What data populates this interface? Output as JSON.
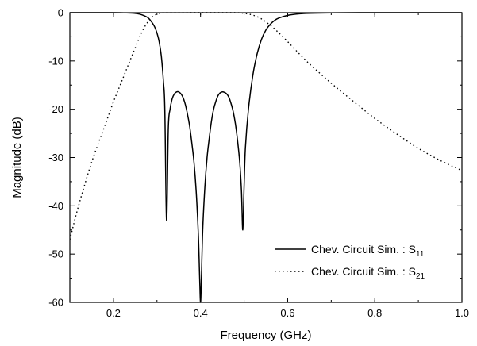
{
  "chart_data": {
    "type": "line",
    "xlabel": "Frequency (GHz)",
    "ylabel": "Magnitude (dB)",
    "xlim": [
      0.1,
      1.0
    ],
    "ylim": [
      -60,
      0
    ],
    "x_ticks": [
      0.2,
      0.4,
      0.6,
      0.8,
      1.0
    ],
    "x_tick_labels": [
      "0.2",
      "0.4",
      "0.6",
      "0.8",
      "1.0"
    ],
    "y_ticks": [
      0,
      -10,
      -20,
      -30,
      -40,
      -50,
      -60
    ],
    "y_tick_labels": [
      "0",
      "-10",
      "-20",
      "-30",
      "-40",
      "-50",
      "-60"
    ],
    "grid": false,
    "legend_position": "bottom-right",
    "series": [
      {
        "name": "Chev. Circuit Sim. : S11",
        "legend_main": "Chev. Circuit Sim. : S",
        "legend_sub": "11",
        "style": "solid",
        "color": "#000000",
        "x": [
          0.1,
          0.15,
          0.2,
          0.23,
          0.25,
          0.26,
          0.27,
          0.28,
          0.29,
          0.295,
          0.3,
          0.305,
          0.31,
          0.315,
          0.318,
          0.322,
          0.326,
          0.33,
          0.335,
          0.34,
          0.345,
          0.35,
          0.355,
          0.36,
          0.365,
          0.37,
          0.375,
          0.38,
          0.385,
          0.39,
          0.395,
          0.398,
          0.4,
          0.402,
          0.405,
          0.41,
          0.415,
          0.42,
          0.425,
          0.43,
          0.435,
          0.44,
          0.445,
          0.45,
          0.455,
          0.46,
          0.465,
          0.47,
          0.475,
          0.48,
          0.485,
          0.49,
          0.494,
          0.497,
          0.5,
          0.503,
          0.51,
          0.52,
          0.53,
          0.54,
          0.55,
          0.56,
          0.57,
          0.58,
          0.6,
          0.62,
          0.65,
          0.7,
          0.8,
          0.9,
          1.0
        ],
        "y": [
          0,
          0,
          0,
          -0.05,
          -0.15,
          -0.3,
          -0.6,
          -1.1,
          -2.2,
          -3.0,
          -4.2,
          -6.0,
          -9.0,
          -14.5,
          -20.0,
          -43.0,
          -24.0,
          -20.0,
          -17.8,
          -16.8,
          -16.4,
          -16.4,
          -16.8,
          -17.6,
          -19.0,
          -21.0,
          -23.5,
          -27.0,
          -31.0,
          -37.0,
          -46.0,
          -55.0,
          -60.0,
          -55.0,
          -45.0,
          -36.0,
          -30.0,
          -26.0,
          -22.5,
          -20.0,
          -18.4,
          -17.2,
          -16.6,
          -16.4,
          -16.5,
          -16.8,
          -17.5,
          -18.8,
          -20.5,
          -23.0,
          -26.5,
          -31.0,
          -37.0,
          -45.0,
          -36.0,
          -28.0,
          -20.0,
          -13.0,
          -8.5,
          -5.5,
          -3.6,
          -2.4,
          -1.6,
          -1.1,
          -0.55,
          -0.28,
          -0.12,
          -0.04,
          0,
          0,
          0
        ]
      },
      {
        "name": "Chev. Circuit Sim. : S21",
        "legend_main": "Chev. Circuit Sim. : S",
        "legend_sub": "21",
        "style": "dotted",
        "color": "#000000",
        "x": [
          0.1,
          0.12,
          0.15,
          0.18,
          0.2,
          0.22,
          0.24,
          0.25,
          0.26,
          0.27,
          0.28,
          0.29,
          0.3,
          0.31,
          0.32,
          0.4,
          0.48,
          0.5,
          0.52,
          0.54,
          0.56,
          0.58,
          0.6,
          0.62,
          0.65,
          0.7,
          0.75,
          0.8,
          0.85,
          0.9,
          0.95,
          1.0
        ],
        "y": [
          -47.0,
          -40.0,
          -31.0,
          -23.5,
          -18.5,
          -14.0,
          -9.5,
          -7.3,
          -5.1,
          -3.2,
          -1.8,
          -0.8,
          -0.3,
          -0.1,
          0,
          0,
          0,
          -0.15,
          -0.5,
          -1.3,
          -2.6,
          -4.2,
          -6.0,
          -7.9,
          -10.6,
          -14.6,
          -18.3,
          -21.9,
          -25.1,
          -28.1,
          -30.6,
          -32.7
        ]
      }
    ]
  }
}
